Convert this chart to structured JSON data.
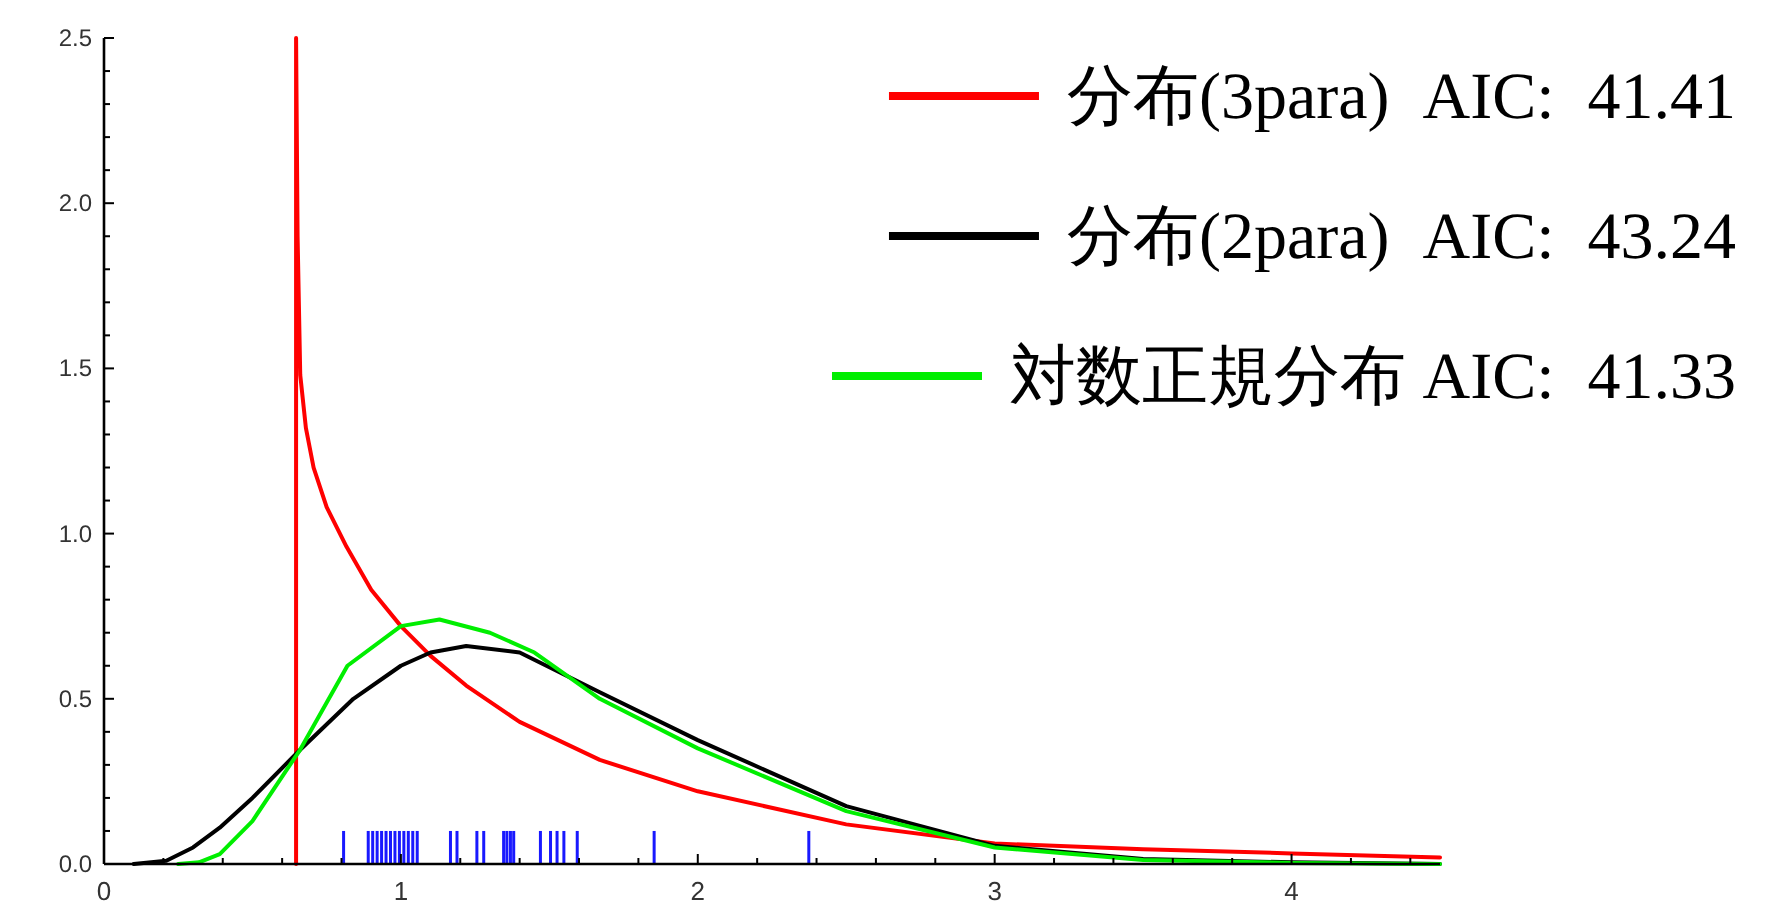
{
  "chart_data": {
    "type": "line",
    "xlim": [
      0,
      4.5
    ],
    "ylim": [
      0,
      2.5
    ],
    "xticks": [
      0,
      {
        "value": 0.2,
        "label": null
      },
      {
        "value": 0.4,
        "label": null
      },
      {
        "value": 0.6,
        "label": null
      },
      {
        "value": 0.8,
        "label": null
      },
      1,
      {
        "value": 1.2,
        "label": null
      },
      {
        "value": 1.4,
        "label": null
      },
      {
        "value": 1.6,
        "label": null
      },
      {
        "value": 1.8,
        "label": null
      },
      2,
      {
        "value": 2.2,
        "label": null
      },
      {
        "value": 2.4,
        "label": null
      },
      {
        "value": 2.6,
        "label": null
      },
      {
        "value": 2.8,
        "label": null
      },
      3,
      {
        "value": 3.2,
        "label": null
      },
      {
        "value": 3.4,
        "label": null
      },
      {
        "value": 3.6,
        "label": null
      },
      {
        "value": 3.8,
        "label": null
      },
      4,
      {
        "value": 4.2,
        "label": null
      },
      {
        "value": 4.4,
        "label": null
      }
    ],
    "yticks": [
      {
        "value": 0,
        "label": "0.0"
      },
      {
        "value": 0.1,
        "label": null
      },
      {
        "value": 0.2,
        "label": null
      },
      {
        "value": 0.3,
        "label": null
      },
      {
        "value": 0.4,
        "label": null
      },
      0.5,
      {
        "value": 0.6,
        "label": null
      },
      {
        "value": 0.7,
        "label": null
      },
      {
        "value": 0.8,
        "label": null
      },
      {
        "value": 0.9,
        "label": null
      },
      {
        "value": 1,
        "label": "1.0"
      },
      {
        "value": 1.1,
        "label": null
      },
      {
        "value": 1.2,
        "label": null
      },
      {
        "value": 1.3,
        "label": null
      },
      {
        "value": 1.4,
        "label": null
      },
      1.5,
      {
        "value": 1.6,
        "label": null
      },
      {
        "value": 1.7,
        "label": null
      },
      {
        "value": 1.8,
        "label": null
      },
      {
        "value": 1.9,
        "label": null
      },
      {
        "value": 2,
        "label": "2.0"
      },
      {
        "value": 2.1,
        "label": null
      },
      {
        "value": 2.2,
        "label": null
      },
      {
        "value": 2.3,
        "label": null
      },
      {
        "value": 2.4,
        "label": null
      },
      2.5
    ],
    "grid": false,
    "legend": "top right",
    "marker": "none",
    "line_style": "solid",
    "series": [
      {
        "type": "bar",
        "color": "#0000ff",
        "x": [
          0.807,
          0.89,
          0.905,
          0.92,
          0.935,
          0.95,
          0.965,
          0.98,
          0.995,
          1.01,
          1.025,
          1.04,
          1.055,
          1.167,
          1.189,
          1.256,
          1.279,
          1.346,
          1.357,
          1.369,
          1.38,
          1.47,
          1.504,
          1.526,
          1.549,
          1.594,
          1.853,
          2.374
        ],
        "values": [
          0.1,
          0.1,
          0.1,
          0.1,
          0.1,
          0.1,
          0.1,
          0.1,
          0.1,
          0.1,
          0.1,
          0.1,
          0.1,
          0.1,
          0.1,
          0.1,
          0.1,
          0.1,
          0.1,
          0.1,
          0.1,
          0.1,
          0.1,
          0.1,
          0.1,
          0.1,
          0.1,
          0.1
        ]
      },
      {
        "name": "分布(3para)  AIC:  41.41",
        "color": "#ff0000",
        "x": [
          0.647,
          0.647,
          0.652,
          0.661,
          0.68,
          0.706,
          0.75,
          0.817,
          0.9,
          1.0,
          1.1,
          1.22,
          1.4,
          1.67,
          2.0,
          2.5,
          3.0,
          3.5,
          4.0,
          4.5
        ],
        "values": [
          0,
          2.5,
          1.9,
          1.48,
          1.32,
          1.2,
          1.08,
          0.96,
          0.83,
          0.72,
          0.63,
          0.54,
          0.43,
          0.315,
          0.22,
          0.12,
          0.062,
          0.045,
          0.032,
          0.02
        ]
      },
      {
        "name": "分布(2para)  AIC:  43.24",
        "color": "#000000",
        "x": [
          0.1,
          0.21,
          0.3,
          0.39,
          0.5,
          0.66,
          0.84,
          1.0,
          1.1,
          1.22,
          1.4,
          1.67,
          2.0,
          2.5,
          3.0,
          3.5,
          4.0,
          4.5
        ],
        "values": [
          0,
          0.01,
          0.05,
          0.11,
          0.2,
          0.345,
          0.5,
          0.6,
          0.64,
          0.66,
          0.64,
          0.52,
          0.375,
          0.175,
          0.055,
          0.015,
          0.005,
          0
        ]
      },
      {
        "name": "対数正規分布 AIC:  41.33",
        "color": "#00ee00",
        "x": [
          0.25,
          0.32,
          0.39,
          0.5,
          0.66,
          0.82,
          1.0,
          1.13,
          1.3,
          1.45,
          1.67,
          2.0,
          2.5,
          3.0,
          3.5,
          4.0,
          4.5
        ],
        "values": [
          0,
          0.005,
          0.03,
          0.13,
          0.345,
          0.6,
          0.72,
          0.74,
          0.7,
          0.64,
          0.5,
          0.35,
          0.16,
          0.05,
          0.012,
          0.003,
          0
        ]
      }
    ]
  }
}
